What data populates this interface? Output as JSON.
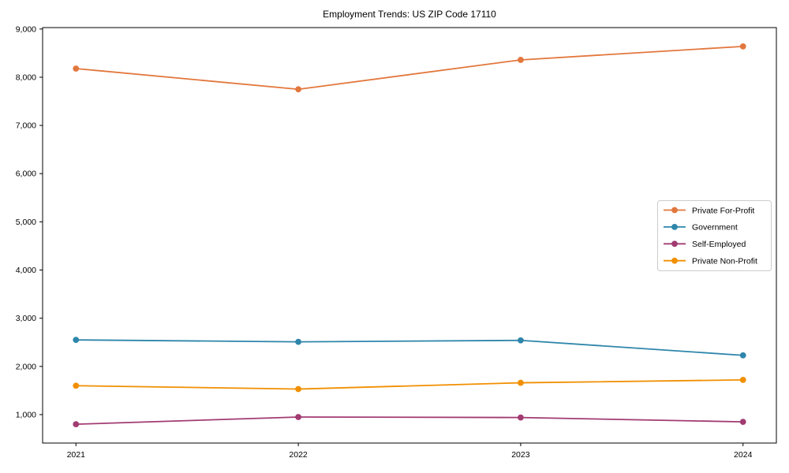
{
  "chart_data": {
    "type": "line",
    "title": "Employment Trends: US ZIP Code 17110",
    "x": [
      2021,
      2022,
      2023,
      2024
    ],
    "x_tick_labels": [
      "2021",
      "2022",
      "2023",
      "2024"
    ],
    "y_ticks": [
      1000,
      2000,
      3000,
      4000,
      5000,
      6000,
      7000,
      8000,
      9000
    ],
    "y_tick_labels": [
      "1,000",
      "2,000",
      "3,000",
      "4,000",
      "5,000",
      "6,000",
      "7,000",
      "8,000",
      "9,000"
    ],
    "xlim": [
      2020.85,
      2024.15
    ],
    "ylim": [
      410,
      9030
    ],
    "grid": false,
    "legend_position": "center right",
    "series": [
      {
        "name": "Private For-Profit",
        "color": "#E2773D",
        "values": [
          8180,
          7750,
          8360,
          8640
        ]
      },
      {
        "name": "Government",
        "color": "#2E86AB",
        "values": [
          2550,
          2510,
          2540,
          2230
        ]
      },
      {
        "name": "Self-Employed",
        "color": "#A23B72",
        "values": [
          800,
          950,
          940,
          850
        ]
      },
      {
        "name": "Private Non-Profit",
        "color": "#F18F01",
        "values": [
          1600,
          1530,
          1660,
          1720
        ]
      }
    ],
    "axis_color": "#000000",
    "legend_border_color": "#cccccc",
    "background_color": "#ffffff"
  }
}
